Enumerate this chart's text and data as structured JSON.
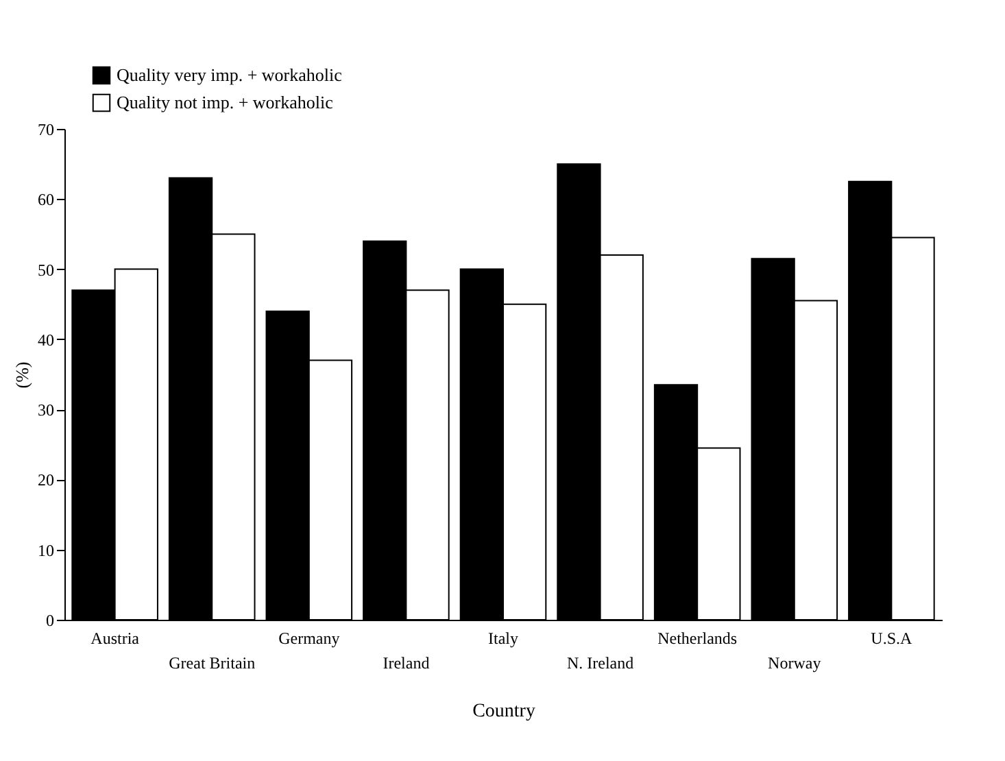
{
  "chart_data": {
    "type": "bar",
    "xlabel": "Country",
    "ylabel": "(%)",
    "categories": [
      "Austria",
      "Great Britain",
      "Germany",
      "Ireland",
      "Italy",
      "N. Ireland",
      "Netherlands",
      "Norway",
      "U.S.A"
    ],
    "series": [
      {
        "name": "Quality very imp. + workaholic",
        "color": "#000000",
        "values": [
          47,
          63,
          44,
          54,
          50,
          65,
          33.5,
          51.5,
          62.5
        ]
      },
      {
        "name": "Quality not imp. + workaholic",
        "color": "#ffffff",
        "values": [
          50,
          55,
          37,
          47,
          45,
          52,
          24.5,
          45.5,
          54.5
        ]
      }
    ],
    "ylim": [
      0,
      70
    ],
    "yticks": [
      0,
      10,
      20,
      30,
      40,
      50,
      60,
      70
    ],
    "grid": false,
    "legend": "top left"
  }
}
